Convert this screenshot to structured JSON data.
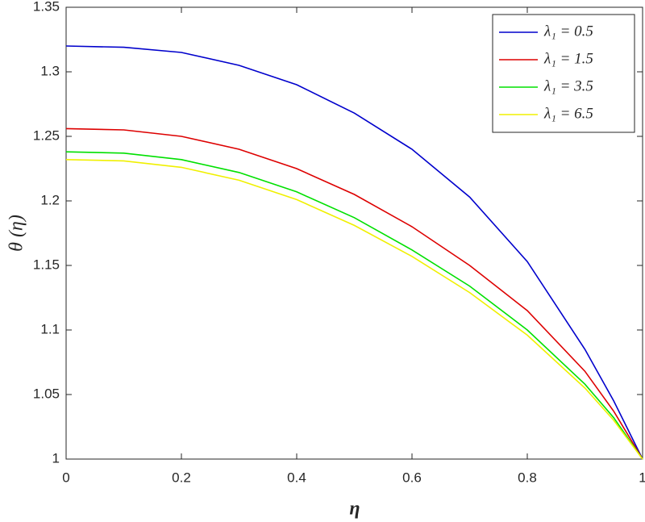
{
  "chart_data": {
    "type": "line",
    "xlabel": "η",
    "ylabel": "θ (η)",
    "x": [
      0,
      0.1,
      0.2,
      0.3,
      0.4,
      0.5,
      0.6,
      0.7,
      0.8,
      0.9,
      0.95,
      1
    ],
    "series": [
      {
        "name": "λ₁ = 0.5",
        "color": "#0000cc",
        "values": [
          1.32,
          1.319,
          1.315,
          1.305,
          1.29,
          1.268,
          1.24,
          1.203,
          1.153,
          1.085,
          1.045,
          1.0
        ]
      },
      {
        "name": "λ₁ = 1.5",
        "color": "#dd0000",
        "values": [
          1.256,
          1.255,
          1.25,
          1.24,
          1.225,
          1.205,
          1.18,
          1.15,
          1.115,
          1.068,
          1.037,
          1.0
        ]
      },
      {
        "name": "λ₁ = 3.5",
        "color": "#00e000",
        "values": [
          1.238,
          1.237,
          1.232,
          1.222,
          1.207,
          1.187,
          1.162,
          1.134,
          1.1,
          1.058,
          1.032,
          1.0
        ]
      },
      {
        "name": "λ₁ = 6.5",
        "color": "#f0f000",
        "values": [
          1.232,
          1.231,
          1.226,
          1.216,
          1.201,
          1.181,
          1.157,
          1.129,
          1.096,
          1.055,
          1.03,
          1.0
        ]
      }
    ],
    "xlim": [
      0,
      1
    ],
    "xticks": [
      0,
      0.2,
      0.4,
      0.6,
      0.8,
      1
    ],
    "ylim": [
      1,
      1.35
    ],
    "yticks": [
      1,
      1.05,
      1.1,
      1.15,
      1.2,
      1.25,
      1.3,
      1.35
    ],
    "legend": "top-right"
  }
}
